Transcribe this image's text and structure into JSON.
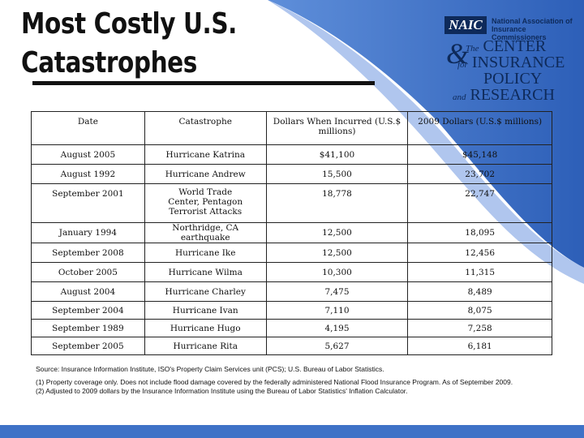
{
  "title": {
    "line1": "Most Costly U.S.",
    "line2": "Catastrophes"
  },
  "logo": {
    "naic_abbr": "NAIC",
    "naic_name_line1": "National Association of",
    "naic_name_line2": "Insurance Commissioners",
    "ampersand": "&",
    "the": "The",
    "center": "CENTER",
    "for": "for",
    "insurance": "INSURANCE",
    "policy": "POLICY",
    "and": "and",
    "research": "RESEARCH"
  },
  "table": {
    "headers": [
      "Date",
      "Catastrophe",
      "Dollars When Incurred (U.S.$ millions)",
      "2009 Dollars (U.S.$ millions)"
    ],
    "rows": [
      [
        "August 2005",
        "Hurricane Katrina",
        "$41,100",
        "$45,148"
      ],
      [
        "August 1992",
        "Hurricane Andrew",
        "15,500",
        "23,702"
      ],
      [
        "September 2001",
        "World Trade Center, Pentagon Terrorist Attacks",
        "18,778",
        "22,747"
      ],
      [
        "January 1994",
        "Northridge, CA earthquake",
        "12,500",
        "18,095"
      ],
      [
        "September 2008",
        "Hurricane Ike",
        "12,500",
        "12,456"
      ],
      [
        "October 2005",
        "Hurricane Wilma",
        "10,300",
        "11,315"
      ],
      [
        "August 2004",
        "Hurricane Charley",
        "7,475",
        "8,489"
      ],
      [
        "September 2004",
        "Hurricane Ivan",
        "7,110",
        "8,075"
      ],
      [
        "September 1989",
        "Hurricane Hugo",
        "4,195",
        "7,258"
      ],
      [
        "September 2005",
        "Hurricane Rita",
        "5,627",
        "6,181"
      ]
    ]
  },
  "notes": {
    "source": "Source: Insurance Information Institute, ISO's Property Claim Services unit (PCS); U.S. Bureau of Labor Statistics.",
    "note1": "(1) Property coverage only. Does not include flood damage covered by the federally administered National Flood Insurance Program. As of September 2009.",
    "note2": "(2) Adjusted to 2009 dollars by the Insurance Information Institute using the Bureau of Labor Statistics' Inflation Calculator."
  },
  "colors": {
    "brand_blue": "#3f72c7",
    "navy": "#0e2a5a"
  }
}
